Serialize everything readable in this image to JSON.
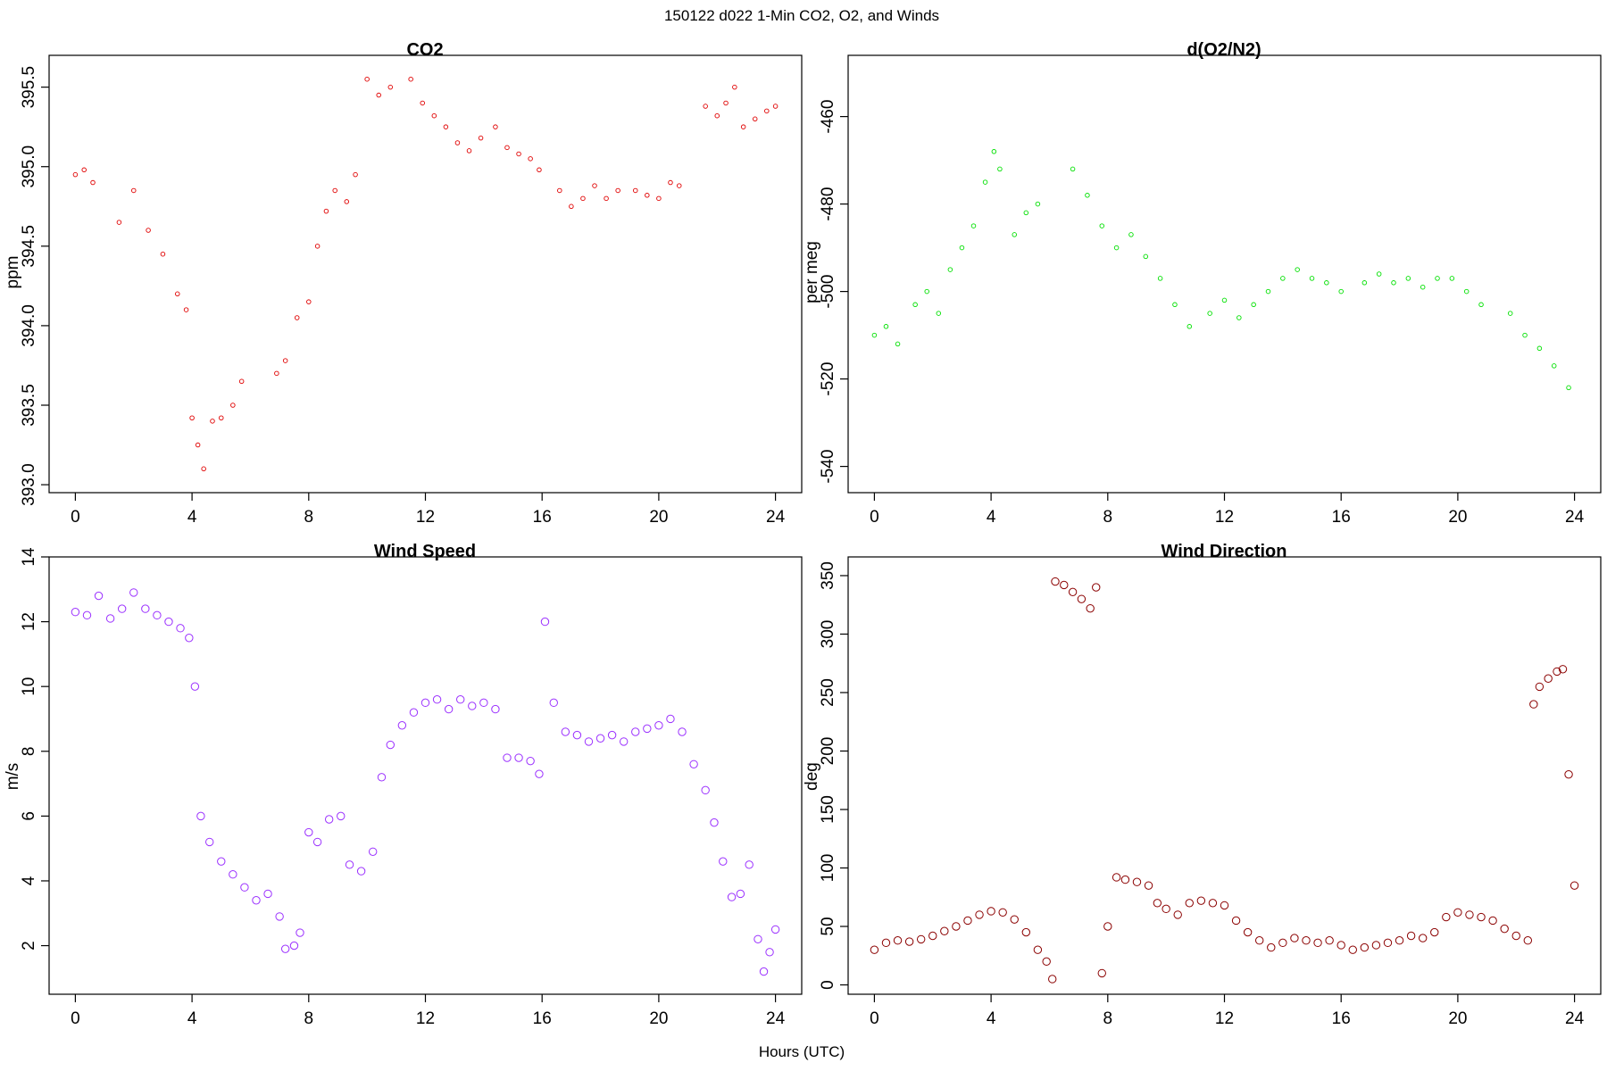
{
  "figure": {
    "suptitle": "150122   d022   1-Min CO2, O2, and Winds",
    "xlabel": "Hours (UTC)"
  },
  "chart_data": [
    {
      "id": "co2",
      "type": "scatter",
      "title": "CO2",
      "xlabel": "",
      "ylabel": "ppm",
      "xlim": [
        -0.9,
        24.9
      ],
      "ylim": [
        392.95,
        395.7
      ],
      "xticks": [
        0,
        4,
        8,
        12,
        16,
        20,
        24
      ],
      "yticks": [
        393.0,
        393.5,
        394.0,
        394.5,
        395.0,
        395.5
      ],
      "ytick_labels": [
        "393.0",
        "393.5",
        "394.0",
        "394.5",
        "395.0",
        "395.5"
      ],
      "color": "#e00000",
      "marker_size": "small",
      "x": [
        0.0,
        0.3,
        0.6,
        1.5,
        2.0,
        2.5,
        3.0,
        3.5,
        3.8,
        4.0,
        4.2,
        4.4,
        4.7,
        5.0,
        5.4,
        5.7,
        6.9,
        7.2,
        7.6,
        8.0,
        8.3,
        8.6,
        8.9,
        9.3,
        9.6,
        10.0,
        10.4,
        10.8,
        11.5,
        11.9,
        12.3,
        12.7,
        13.1,
        13.5,
        13.9,
        14.4,
        14.8,
        15.2,
        15.6,
        15.9,
        16.6,
        17.0,
        17.4,
        17.8,
        18.2,
        18.6,
        19.2,
        19.6,
        20.0,
        20.4,
        20.7,
        21.6,
        22.0,
        22.3,
        22.6,
        22.9,
        23.3,
        23.7,
        24.0
      ],
      "y": [
        394.95,
        394.98,
        394.9,
        394.65,
        394.85,
        394.6,
        394.45,
        394.2,
        394.1,
        393.42,
        393.25,
        393.1,
        393.4,
        393.42,
        393.5,
        393.65,
        393.7,
        393.78,
        394.05,
        394.15,
        394.5,
        394.72,
        394.85,
        394.78,
        394.95,
        395.55,
        395.45,
        395.5,
        395.55,
        395.4,
        395.32,
        395.25,
        395.15,
        395.1,
        395.18,
        395.25,
        395.12,
        395.08,
        395.05,
        394.98,
        394.85,
        394.75,
        394.8,
        394.88,
        394.8,
        394.85,
        394.85,
        394.82,
        394.8,
        394.9,
        394.88,
        395.38,
        395.32,
        395.4,
        395.5,
        395.25,
        395.3,
        395.35,
        395.38
      ]
    },
    {
      "id": "o2n2",
      "type": "scatter",
      "title": "d(O2/N2)",
      "xlabel": "",
      "ylabel": "per meg",
      "xlim": [
        -0.9,
        24.9
      ],
      "ylim": [
        -546,
        -446
      ],
      "xticks": [
        0,
        4,
        8,
        12,
        16,
        20,
        24
      ],
      "yticks": [
        -540,
        -520,
        -500,
        -480,
        -460
      ],
      "ytick_labels": [
        "-540",
        "-520",
        "-500",
        "-480",
        "-460"
      ],
      "color": "#00e000",
      "marker_size": "small",
      "x": [
        0.0,
        0.4,
        0.8,
        1.4,
        1.8,
        2.2,
        2.6,
        3.0,
        3.4,
        3.8,
        4.1,
        4.3,
        4.8,
        5.2,
        5.6,
        6.8,
        7.3,
        7.8,
        8.3,
        8.8,
        9.3,
        9.8,
        10.3,
        10.8,
        11.5,
        12.0,
        12.5,
        13.0,
        13.5,
        14.0,
        14.5,
        15.0,
        15.5,
        16.0,
        16.8,
        17.3,
        17.8,
        18.3,
        18.8,
        19.3,
        19.8,
        20.3,
        20.8,
        21.8,
        22.3,
        22.8,
        23.3,
        23.8
      ],
      "y": [
        -510,
        -508,
        -512,
        -503,
        -500,
        -505,
        -495,
        -490,
        -485,
        -475,
        -468,
        -472,
        -487,
        -482,
        -480,
        -472,
        -478,
        -485,
        -490,
        -487,
        -492,
        -497,
        -503,
        -508,
        -505,
        -502,
        -506,
        -503,
        -500,
        -497,
        -495,
        -497,
        -498,
        -500,
        -498,
        -496,
        -498,
        -497,
        -499,
        -497,
        -497,
        -500,
        -503,
        -505,
        -510,
        -513,
        -517,
        -522
      ]
    },
    {
      "id": "wind_speed",
      "type": "scatter",
      "title": "Wind Speed",
      "xlabel": "",
      "ylabel": "m/s",
      "xlim": [
        -0.9,
        24.9
      ],
      "ylim": [
        0.5,
        14.0
      ],
      "xticks": [
        0,
        4,
        8,
        12,
        16,
        20,
        24
      ],
      "yticks": [
        2,
        4,
        6,
        8,
        10,
        12,
        14
      ],
      "ytick_labels": [
        "2",
        "4",
        "6",
        "8",
        "10",
        "12",
        "14"
      ],
      "color": "#9b30ff",
      "marker_size": "large",
      "x": [
        0.0,
        0.4,
        0.8,
        1.2,
        1.6,
        2.0,
        2.4,
        2.8,
        3.2,
        3.6,
        3.9,
        4.1,
        4.3,
        4.6,
        5.0,
        5.4,
        5.8,
        6.2,
        6.6,
        7.0,
        7.2,
        7.5,
        7.7,
        8.0,
        8.3,
        8.7,
        9.1,
        9.4,
        9.8,
        10.2,
        10.5,
        10.8,
        11.2,
        11.6,
        12.0,
        12.4,
        12.8,
        13.2,
        13.6,
        14.0,
        14.4,
        14.8,
        15.2,
        15.6,
        15.9,
        16.1,
        16.4,
        16.8,
        17.2,
        17.6,
        18.0,
        18.4,
        18.8,
        19.2,
        19.6,
        20.0,
        20.4,
        20.8,
        21.2,
        21.6,
        21.9,
        22.2,
        22.5,
        22.8,
        23.1,
        23.4,
        23.6,
        23.8,
        24.0
      ],
      "y": [
        12.3,
        12.2,
        12.8,
        12.1,
        12.4,
        12.9,
        12.4,
        12.2,
        12.0,
        11.8,
        11.5,
        10.0,
        6.0,
        5.2,
        4.6,
        4.2,
        3.8,
        3.4,
        3.6,
        2.9,
        1.9,
        2.0,
        2.4,
        5.5,
        5.2,
        5.9,
        6.0,
        4.5,
        4.3,
        4.9,
        7.2,
        8.2,
        8.8,
        9.2,
        9.5,
        9.6,
        9.3,
        9.6,
        9.4,
        9.5,
        9.3,
        7.8,
        7.8,
        7.7,
        7.3,
        12.0,
        9.5,
        8.6,
        8.5,
        8.3,
        8.4,
        8.5,
        8.3,
        8.6,
        8.7,
        8.8,
        9.0,
        8.6,
        7.6,
        6.8,
        5.8,
        4.6,
        3.5,
        3.6,
        4.5,
        2.2,
        1.2,
        1.8,
        2.5
      ]
    },
    {
      "id": "wind_direction",
      "type": "scatter",
      "title": "Wind Direction",
      "xlabel": "",
      "ylabel": "deg",
      "xlim": [
        -0.9,
        24.9
      ],
      "ylim": [
        -8,
        366
      ],
      "xticks": [
        0,
        4,
        8,
        12,
        16,
        20,
        24
      ],
      "yticks": [
        0,
        50,
        100,
        150,
        200,
        250,
        300,
        350
      ],
      "ytick_labels": [
        "0",
        "50",
        "100",
        "150",
        "200",
        "250",
        "300",
        "350"
      ],
      "color": "#8b0000",
      "marker_size": "large",
      "x": [
        0.0,
        0.4,
        0.8,
        1.2,
        1.6,
        2.0,
        2.4,
        2.8,
        3.2,
        3.6,
        4.0,
        4.4,
        4.8,
        5.2,
        5.6,
        5.9,
        6.1,
        6.2,
        6.5,
        6.8,
        7.1,
        7.4,
        7.6,
        7.8,
        8.0,
        8.3,
        8.6,
        9.0,
        9.4,
        9.7,
        10.0,
        10.4,
        10.8,
        11.2,
        11.6,
        12.0,
        12.4,
        12.8,
        13.2,
        13.6,
        14.0,
        14.4,
        14.8,
        15.2,
        15.6,
        16.0,
        16.4,
        16.8,
        17.2,
        17.6,
        18.0,
        18.4,
        18.8,
        19.2,
        19.6,
        20.0,
        20.4,
        20.8,
        21.2,
        21.6,
        22.0,
        22.4,
        22.6,
        22.8,
        23.1,
        23.4,
        23.6,
        23.8,
        24.0
      ],
      "y": [
        30,
        36,
        38,
        37,
        39,
        42,
        46,
        50,
        55,
        60,
        63,
        62,
        56,
        45,
        30,
        20,
        5,
        345,
        342,
        336,
        330,
        322,
        340,
        10,
        50,
        92,
        90,
        88,
        85,
        70,
        65,
        60,
        70,
        72,
        70,
        68,
        55,
        45,
        38,
        32,
        36,
        40,
        38,
        36,
        38,
        34,
        30,
        32,
        34,
        36,
        38,
        42,
        40,
        45,
        58,
        62,
        60,
        58,
        55,
        48,
        42,
        38,
        240,
        255,
        262,
        268,
        270,
        180,
        85
      ]
    }
  ]
}
